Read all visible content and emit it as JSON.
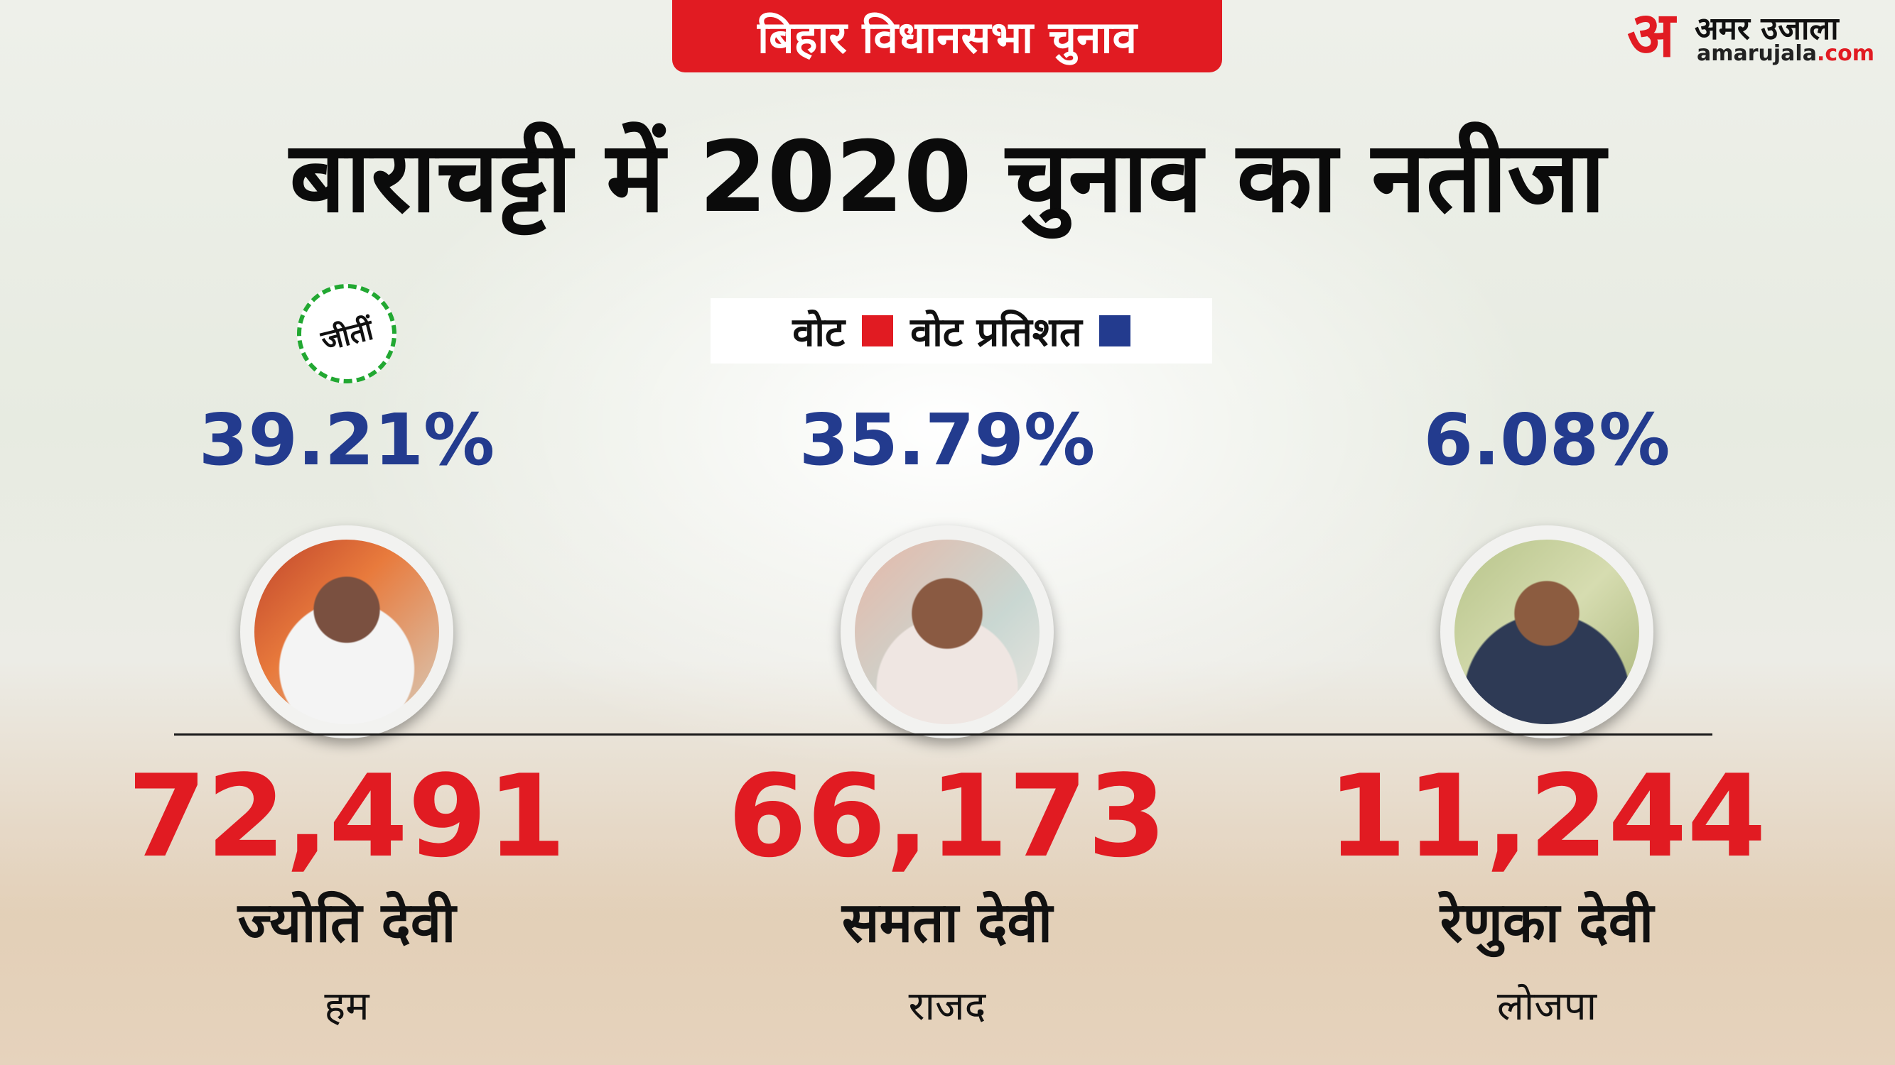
{
  "header": {
    "tag": "बिहार विधानसभा चुनाव",
    "title": "बाराचट्टी में  2020 चुनाव का नतीजा"
  },
  "logo": {
    "mark": "अ",
    "brand": "अमर उजाला",
    "url_main": "amarujala",
    "url_tld": ".com"
  },
  "legend": {
    "votes_label": "वोट",
    "votes_color": "#e11b22",
    "pct_label": "वोट प्रतिशत",
    "pct_color": "#233b8e"
  },
  "winner_badge": "जीतीं",
  "candidates": [
    {
      "name": "ज्योति देवी",
      "party": "हम",
      "votes": "72,491",
      "vote_pct": "39.21%",
      "winner": true
    },
    {
      "name": "समता देवी",
      "party": "राजद",
      "votes": "66,173",
      "vote_pct": "35.79%",
      "winner": false
    },
    {
      "name": "रेणुका देवी",
      "party": "लोजपा",
      "votes": "11,244",
      "vote_pct": "6.08%",
      "winner": false
    }
  ]
}
